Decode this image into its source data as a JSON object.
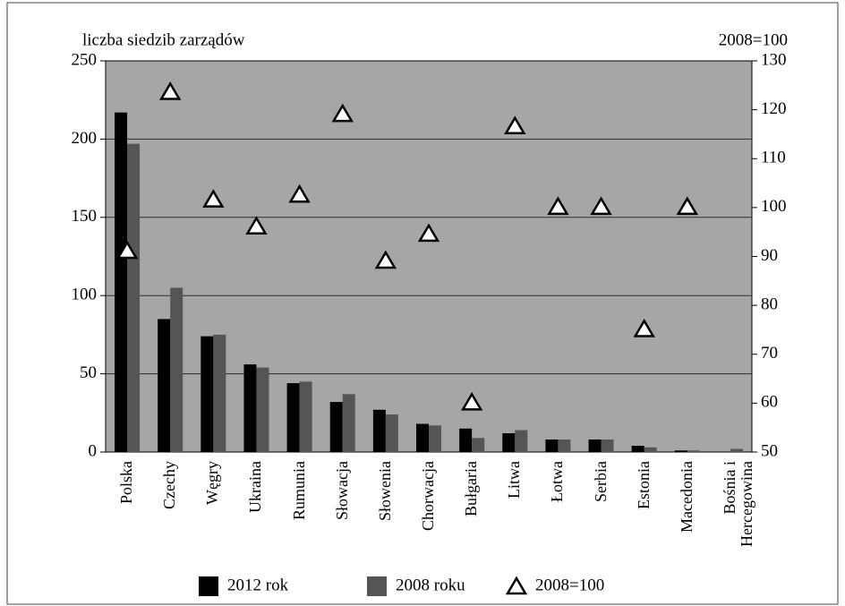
{
  "chart_data": {
    "type": "bar",
    "y_label": "liczba siedzib zarządów",
    "y2_label": "2008=100",
    "categories": [
      "Polska",
      "Czechy",
      "Węgry",
      "Ukraina",
      "Rumunia",
      "Słowacja",
      "Słowenia",
      "Chorwacja",
      "Bułgaria",
      "Litwa",
      "Łotwa",
      "Serbia",
      "Estonia",
      "Macedonia",
      "Bośnia i Hercegowina"
    ],
    "series": [
      {
        "name": "2012 rok",
        "color": "#000000",
        "values": [
          217,
          85,
          74,
          56,
          44,
          32,
          27,
          18,
          15,
          12,
          8,
          8,
          4,
          1,
          0
        ]
      },
      {
        "name": "2008 roku",
        "color": "#555555",
        "values": [
          197,
          105,
          75,
          54,
          45,
          37,
          24,
          17,
          9,
          14,
          8,
          8,
          3,
          1,
          2
        ]
      },
      {
        "name": "2008=100",
        "color": "#ffffff",
        "axis": "y2",
        "marker": "triangle",
        "values": [
          91,
          123.5,
          101.5,
          96,
          102.5,
          119,
          89,
          94.5,
          60,
          116.5,
          100,
          100,
          75,
          100,
          null
        ]
      }
    ],
    "ylim": [
      0,
      250
    ],
    "yticks": [
      0,
      50,
      100,
      150,
      200,
      250
    ],
    "y2lim": [
      50,
      130
    ],
    "y2ticks": [
      50,
      60,
      70,
      80,
      90,
      100,
      110,
      120,
      130
    ],
    "grid": true,
    "plot_background": "#a6a6a6",
    "legend": "bottom"
  }
}
